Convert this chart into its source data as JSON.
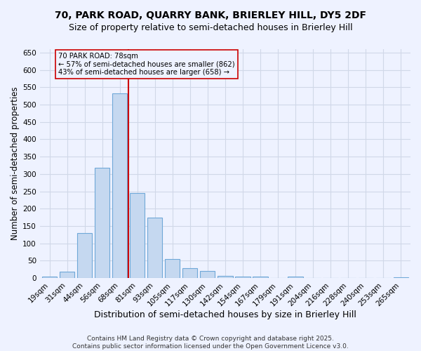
{
  "title": "70, PARK ROAD, QUARRY BANK, BRIERLEY HILL, DY5 2DF",
  "subtitle": "Size of property relative to semi-detached houses in Brierley Hill",
  "xlabel": "Distribution of semi-detached houses by size in Brierley Hill",
  "ylabel": "Number of semi-detached properties",
  "categories": [
    "19sqm",
    "31sqm",
    "44sqm",
    "56sqm",
    "68sqm",
    "81sqm",
    "93sqm",
    "105sqm",
    "117sqm",
    "130sqm",
    "142sqm",
    "154sqm",
    "167sqm",
    "179sqm",
    "191sqm",
    "204sqm",
    "216sqm",
    "228sqm",
    "240sqm",
    "253sqm",
    "265sqm"
  ],
  "values": [
    4,
    19,
    130,
    318,
    533,
    245,
    174,
    55,
    29,
    20,
    7,
    5,
    4,
    0,
    5,
    0,
    1,
    0,
    1,
    0,
    3
  ],
  "bar_color": "#c5d8f0",
  "bar_edge_color": "#6fa8d8",
  "vline_x_index": 4,
  "vline_color": "#cc0000",
  "annotation_text": "70 PARK ROAD: 78sqm\n← 57% of semi-detached houses are smaller (862)\n43% of semi-detached houses are larger (658) →",
  "annotation_box_color": "#cc0000",
  "annotation_fontsize": 7.2,
  "ylim": [
    0,
    660
  ],
  "yticks": [
    0,
    50,
    100,
    150,
    200,
    250,
    300,
    350,
    400,
    450,
    500,
    550,
    600,
    650
  ],
  "background_color": "#eef2ff",
  "grid_color": "#d0d8e8",
  "footer_line1": "Contains HM Land Registry data © Crown copyright and database right 2025.",
  "footer_line2": "Contains public sector information licensed under the Open Government Licence v3.0.",
  "title_fontsize": 10,
  "subtitle_fontsize": 9,
  "xlabel_fontsize": 9,
  "ylabel_fontsize": 8.5,
  "footer_fontsize": 6.5,
  "tick_fontsize": 7.5
}
